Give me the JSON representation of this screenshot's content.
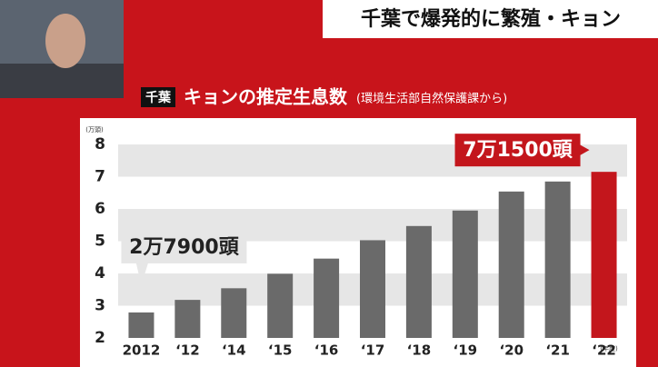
{
  "chart_data": {
    "type": "bar",
    "headline": "千葉で爆発的に繁殖・キョン",
    "tag": "千葉",
    "title": "キョンの推定生息数",
    "subtitle": "(環境生活部自然保護課から)",
    "y_label": "(万頭)",
    "x_label": "(年度)",
    "categories": [
      "2012",
      "‘12",
      "‘14",
      "‘15",
      "‘16",
      "‘17",
      "‘18",
      "‘19",
      "‘20",
      "‘21",
      "‘22"
    ],
    "values": [
      2.79,
      3.18,
      3.54,
      3.99,
      4.46,
      5.03,
      5.47,
      5.95,
      6.54,
      6.85,
      7.15
    ],
    "value_labels": [
      "2万7900頭",
      null,
      null,
      null,
      null,
      null,
      null,
      null,
      null,
      null,
      "7万1500頭"
    ],
    "colors": [
      "#6a6a6a",
      "#6a6a6a",
      "#6a6a6a",
      "#6a6a6a",
      "#6a6a6a",
      "#6a6a6a",
      "#6a6a6a",
      "#6a6a6a",
      "#6a6a6a",
      "#6a6a6a",
      "#c3161c"
    ],
    "ylim": [
      2,
      8
    ],
    "yticks": [
      2,
      3,
      4,
      5,
      6,
      7,
      8
    ],
    "grid": "bands"
  }
}
